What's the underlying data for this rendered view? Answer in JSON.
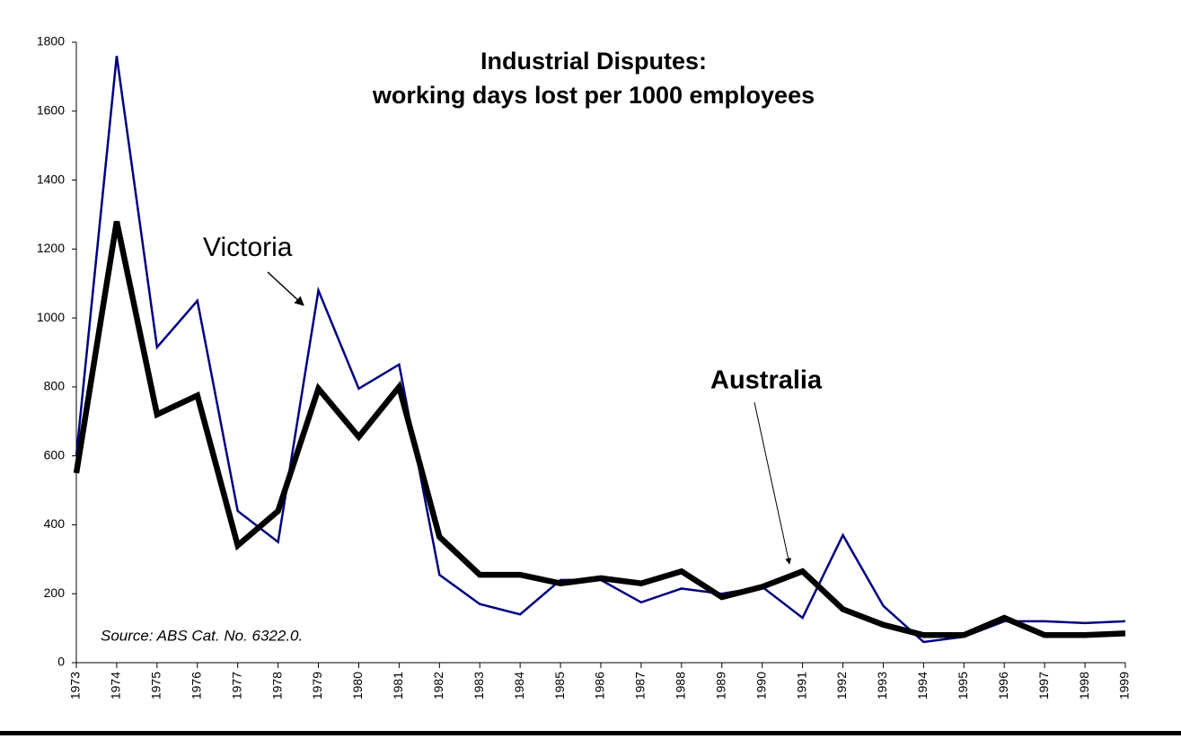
{
  "chart_data": {
    "type": "line",
    "title": "Industrial Disputes:",
    "subtitle": "working days lost per 1000 employees",
    "source": "Source: ABS Cat. No. 6322.0.",
    "x": [
      1973,
      1974,
      1975,
      1976,
      1977,
      1978,
      1979,
      1980,
      1981,
      1982,
      1983,
      1984,
      1985,
      1986,
      1987,
      1988,
      1989,
      1990,
      1991,
      1992,
      1993,
      1994,
      1995,
      1996,
      1997,
      1998,
      1999
    ],
    "xlim": [
      1973,
      1999
    ],
    "ylim": [
      0,
      1800
    ],
    "yticks": [
      0,
      200,
      400,
      600,
      800,
      1000,
      1200,
      1400,
      1600,
      1800
    ],
    "series": [
      {
        "name": "Victoria",
        "color": "#000080",
        "values": [
          600,
          1760,
          915,
          1050,
          440,
          350,
          1080,
          795,
          865,
          255,
          170,
          140,
          240,
          240,
          175,
          215,
          200,
          220,
          130,
          370,
          165,
          60,
          75,
          120,
          120,
          115,
          120
        ]
      },
      {
        "name": "Australia",
        "color": "#000000",
        "values": [
          550,
          1280,
          720,
          775,
          340,
          440,
          795,
          655,
          800,
          365,
          255,
          255,
          230,
          245,
          230,
          265,
          190,
          220,
          265,
          155,
          110,
          80,
          80,
          130,
          80,
          80,
          85
        ]
      }
    ]
  }
}
